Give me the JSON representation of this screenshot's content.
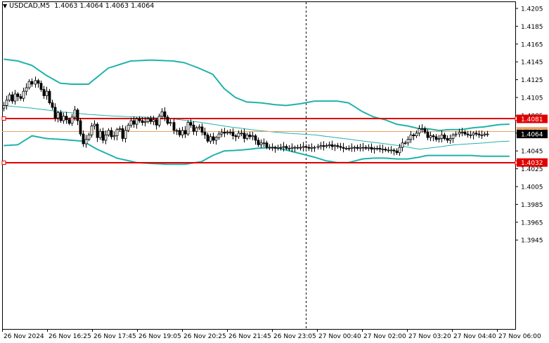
{
  "symbol_header": {
    "symbol": "USDCAD,M5",
    "open": "1.4063",
    "high": "1.4064",
    "low": "1.4063",
    "close": "1.4064",
    "menu_icon": "triangle-down-icon"
  },
  "colors": {
    "background": "#ffffff",
    "axis": "#000000",
    "bull_candle": "#ffffff",
    "bear_candle": "#000000",
    "wick": "#000000",
    "bollinger": "#20b2aa",
    "level_line": "#e00000",
    "bid_line": "#e8a060",
    "price_badge_bg": "#000000",
    "level_badge_bg": "#e00000"
  },
  "chart_data": {
    "type": "candlestick",
    "symbol": "USDCAD",
    "timeframe": "M5",
    "ylim": [
      1.3937,
      1.421
    ],
    "y_ticks": [
      "1.4205",
      "1.4185",
      "1.4165",
      "1.4145",
      "1.4125",
      "1.4105",
      "1.4085",
      "1.4065",
      "1.4045",
      "1.4025",
      "1.4005",
      "1.3985",
      "1.3965",
      "1.3945"
    ],
    "x_ticks": [
      "26 Nov 2024",
      "26 Nov 16:25",
      "26 Nov 17:45",
      "26 Nov 19:05",
      "26 Nov 20:25",
      "26 Nov 21:45",
      "26 Nov 23:05",
      "27 Nov 00:40",
      "27 Nov 02:00",
      "27 Nov 03:20",
      "27 Nov 04:40",
      "27 Nov 06:00"
    ],
    "levels": [
      {
        "label": "1.4081",
        "value": 1.4081
      },
      {
        "label": "1.4032",
        "value": 1.4032
      }
    ],
    "bid_level": {
      "label": "1.4067",
      "value": 1.4067
    },
    "current_price": {
      "label": "1.4064",
      "value": 1.4064
    },
    "period_separator_index": 107,
    "closes": [
      1.4096,
      1.4102,
      1.4108,
      1.4101,
      1.4109,
      1.4106,
      1.4104,
      1.4112,
      1.4116,
      1.4123,
      1.412,
      1.4124,
      1.4121,
      1.4114,
      1.4107,
      1.4112,
      1.4099,
      1.4094,
      1.4082,
      1.4088,
      1.4079,
      1.4084,
      1.408,
      1.4076,
      1.4083,
      1.4091,
      1.4079,
      1.4064,
      1.4053,
      1.4058,
      1.4063,
      1.4073,
      1.4075,
      1.406,
      1.4067,
      1.4057,
      1.4063,
      1.4068,
      1.4061,
      1.4062,
      1.4069,
      1.407,
      1.4059,
      1.4068,
      1.4074,
      1.4079,
      1.4075,
      1.4081,
      1.4079,
      1.4077,
      1.4078,
      1.4081,
      1.4078,
      1.408,
      1.4074,
      1.4084,
      1.4089,
      1.4083,
      1.4076,
      1.4077,
      1.4068,
      1.4068,
      1.4063,
      1.4068,
      1.4064,
      1.4077,
      1.4074,
      1.4067,
      1.4071,
      1.4072,
      1.4066,
      1.4063,
      1.4056,
      1.4061,
      1.4057,
      1.406,
      1.4064,
      1.4066,
      1.4065,
      1.4066,
      1.4066,
      1.4062,
      1.4061,
      1.4065,
      1.4065,
      1.4059,
      1.4063,
      1.4061,
      1.4062,
      1.4057,
      1.4052,
      1.4054,
      1.4054,
      1.4049,
      1.4049,
      1.4049,
      1.4048,
      1.4049,
      1.4049,
      1.405,
      1.4048,
      1.4048,
      1.4049,
      1.4049,
      1.4049,
      1.4049,
      1.405,
      1.4049,
      1.4048,
      1.4049,
      1.4049,
      1.405,
      1.4051,
      1.405,
      1.4051,
      1.4052,
      1.405,
      1.4051,
      1.405,
      1.4049,
      1.4048,
      1.4048,
      1.4048,
      1.4049,
      1.4049,
      1.4048,
      1.4049,
      1.4049,
      1.4048,
      1.4049,
      1.4047,
      1.4048,
      1.4048,
      1.4047,
      1.4047,
      1.4046,
      1.4046,
      1.4046,
      1.4045,
      1.4043,
      1.4049,
      1.4054,
      1.4054,
      1.4058,
      1.4063,
      1.4062,
      1.4065,
      1.407,
      1.407,
      1.4066,
      1.406,
      1.4062,
      1.4061,
      1.4058,
      1.4059,
      1.4063,
      1.4059,
      1.4057,
      1.4059,
      1.4063,
      1.4064,
      1.4066,
      1.4066,
      1.4064,
      1.4063,
      1.4063,
      1.4065,
      1.4064,
      1.4063,
      1.4063,
      1.4064,
      1.4064
    ],
    "bollinger_upper": [
      [
        0,
        1.4148
      ],
      [
        5,
        1.4146
      ],
      [
        10,
        1.4141
      ],
      [
        15,
        1.413
      ],
      [
        20,
        1.4121
      ],
      [
        24,
        1.412
      ],
      [
        30,
        1.412
      ],
      [
        37,
        1.4138
      ],
      [
        45,
        1.4146
      ],
      [
        52,
        1.4147
      ],
      [
        60,
        1.4146
      ],
      [
        64,
        1.4144
      ],
      [
        69,
        1.4138
      ],
      [
        74,
        1.4131
      ],
      [
        78,
        1.4115
      ],
      [
        82,
        1.4105
      ],
      [
        86,
        1.41
      ],
      [
        91,
        1.4099
      ],
      [
        96,
        1.4097
      ],
      [
        100,
        1.4096
      ],
      [
        105,
        1.4098
      ],
      [
        110,
        1.4101
      ],
      [
        114,
        1.4101
      ],
      [
        118,
        1.4101
      ],
      [
        122,
        1.4099
      ],
      [
        127,
        1.4089
      ],
      [
        131,
        1.4083
      ],
      [
        135,
        1.408
      ],
      [
        139,
        1.4075
      ],
      [
        143,
        1.4073
      ],
      [
        147,
        1.407
      ],
      [
        150,
        1.407
      ],
      [
        154,
        1.4068
      ],
      [
        158,
        1.4069
      ],
      [
        162,
        1.4069
      ],
      [
        166,
        1.4071
      ],
      [
        170,
        1.4072
      ],
      [
        174,
        1.4074
      ],
      [
        177,
        1.4075
      ]
    ],
    "bollinger_mid": [
      [
        0,
        1.4096
      ],
      [
        10,
        1.4093
      ],
      [
        20,
        1.4089
      ],
      [
        30,
        1.4086
      ],
      [
        40,
        1.4084
      ],
      [
        50,
        1.4083
      ],
      [
        60,
        1.4081
      ],
      [
        70,
        1.4077
      ],
      [
        80,
        1.4072
      ],
      [
        90,
        1.4068
      ],
      [
        100,
        1.4065
      ],
      [
        110,
        1.4063
      ],
      [
        120,
        1.4059
      ],
      [
        130,
        1.4055
      ],
      [
        140,
        1.4051
      ],
      [
        147,
        1.4047
      ],
      [
        150,
        1.4048
      ],
      [
        155,
        1.405
      ],
      [
        160,
        1.4052
      ],
      [
        165,
        1.4053
      ],
      [
        170,
        1.4054
      ],
      [
        177,
        1.4056
      ]
    ],
    "bollinger_lower": [
      [
        0,
        1.4051
      ],
      [
        5,
        1.4052
      ],
      [
        10,
        1.4062
      ],
      [
        15,
        1.4059
      ],
      [
        20,
        1.4058
      ],
      [
        28,
        1.4056
      ],
      [
        33,
        1.4047
      ],
      [
        40,
        1.4037
      ],
      [
        47,
        1.4032
      ],
      [
        52,
        1.4031
      ],
      [
        58,
        1.403
      ],
      [
        64,
        1.403
      ],
      [
        70,
        1.4033
      ],
      [
        74,
        1.404
      ],
      [
        78,
        1.4045
      ],
      [
        84,
        1.4046
      ],
      [
        90,
        1.4048
      ],
      [
        96,
        1.4049
      ],
      [
        100,
        1.4046
      ],
      [
        105,
        1.4042
      ],
      [
        110,
        1.4038
      ],
      [
        114,
        1.4034
      ],
      [
        118,
        1.4032
      ],
      [
        122,
        1.4032
      ],
      [
        127,
        1.4036
      ],
      [
        131,
        1.4037
      ],
      [
        135,
        1.4037
      ],
      [
        139,
        1.4036
      ],
      [
        143,
        1.4036
      ],
      [
        147,
        1.4038
      ],
      [
        150,
        1.404
      ],
      [
        155,
        1.404
      ],
      [
        160,
        1.404
      ],
      [
        165,
        1.404
      ],
      [
        170,
        1.4039
      ],
      [
        177,
        1.4039
      ]
    ]
  }
}
